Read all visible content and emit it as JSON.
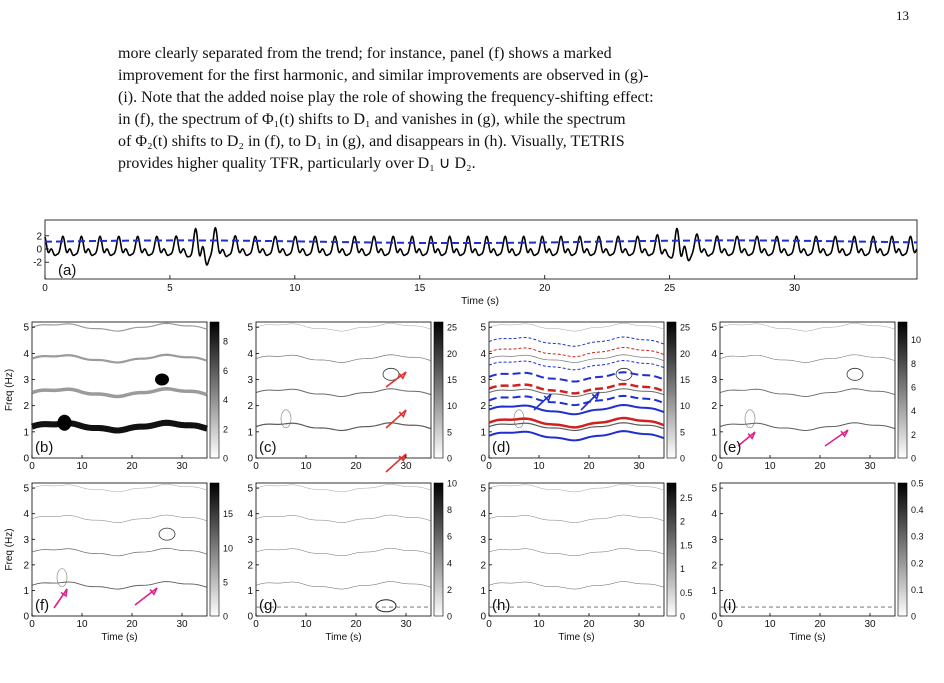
{
  "page_number": "13",
  "paragraph": {
    "lines": [
      "more clearly separated from the trend; for instance, panel (f) shows a marked",
      "improvement for the first harmonic, and similar improvements are observed in (g)-",
      "(i). Note that the added noise play the role of showing the frequency-shifting effect:",
      "in (f), the spectrum of Φ₁(t) shifts to D₁ and vanishes in (g), while the spectrum",
      "of Φ₂(t) shifts to D₂ in (f), to D₁ in (g), and disappears in (h). Visually, TETRIS",
      "provides higher quality TFR, particularly over D₁ ∪ D₂."
    ]
  },
  "figure": {
    "signal": {
      "label": "(a)",
      "xlabel": "Time (s)",
      "xticks": [
        "0",
        "5",
        "10",
        "15",
        "20",
        "25",
        "30"
      ],
      "yticks": [
        "2",
        "0",
        "-2"
      ],
      "signal_color": "#000000",
      "trend_color": "#1f2fd0"
    },
    "heatmap_xlabel": "Time (s)",
    "heatmap_ylabel": "Freq (Hz)",
    "heatmap_xticks": [
      "0",
      "10",
      "20",
      "30"
    ],
    "heatmap_yticks": [
      "0",
      "1",
      "2",
      "3",
      "4",
      "5"
    ],
    "panels": [
      {
        "label": "(b)",
        "cbar": [
          "8",
          "6",
          "4",
          "2",
          "0"
        ]
      },
      {
        "label": "(c)",
        "cbar": [
          "25",
          "20",
          "15",
          "10",
          "5",
          "0"
        ]
      },
      {
        "label": "(d)",
        "cbar": [
          "25",
          "20",
          "15",
          "10",
          "5",
          "0"
        ]
      },
      {
        "label": "(e)",
        "cbar": [
          "10",
          "8",
          "6",
          "4",
          "2",
          "0"
        ]
      },
      {
        "label": "(f)",
        "cbar": [
          "15",
          "10",
          "5",
          "0"
        ]
      },
      {
        "label": "(g)",
        "cbar": [
          "10",
          "8",
          "6",
          "4",
          "2",
          "0"
        ]
      },
      {
        "label": "(h)",
        "cbar": [
          "2.5",
          "2",
          "1.5",
          "1",
          "0.5",
          "0"
        ]
      },
      {
        "label": "(i)",
        "cbar": [
          "0.5",
          "0.4",
          "0.3",
          "0.2",
          "0.1",
          "0"
        ]
      }
    ],
    "arrow_colors": {
      "red": "#e53030",
      "blue": "#1f2fd0",
      "magenta": "#e0208a"
    },
    "curve_colors": {
      "blue": "#1f2fd0",
      "red": "#d02020"
    }
  }
}
